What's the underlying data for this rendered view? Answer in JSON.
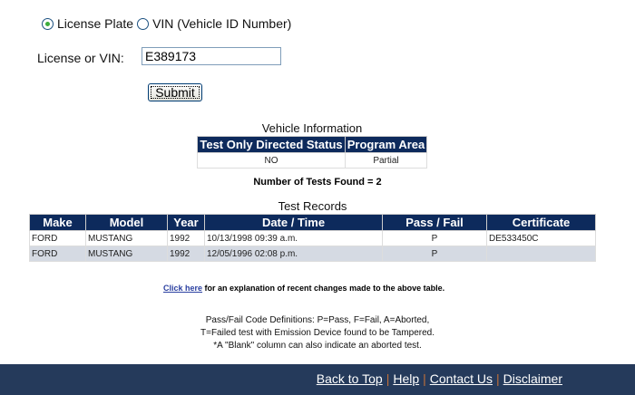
{
  "search": {
    "option_plate": "License Plate",
    "option_vin": "VIN (Vehicle ID Number)",
    "selected": "License Plate",
    "field_label": "License or VIN:",
    "field_value": "E389173",
    "submit_label": "Submit"
  },
  "vehicle_info": {
    "title": "Vehicle Information",
    "headers": [
      "Test Only Directed Status",
      "Program Area"
    ],
    "row": [
      "NO",
      "Partial"
    ]
  },
  "tests_found": "Number of Tests Found = 2",
  "test_records": {
    "title": "Test Records",
    "headers": [
      "Make",
      "Model",
      "Year",
      "Date / Time",
      "Pass / Fail",
      "Certificate"
    ],
    "rows": [
      [
        "FORD",
        "MUSTANG",
        "1992",
        "10/13/1998 09:39 a.m.",
        "P",
        "DE533450C"
      ],
      [
        "FORD",
        "MUSTANG",
        "1992",
        "12/05/1996 02:08 p.m.",
        "P",
        ""
      ]
    ]
  },
  "explanation": {
    "link": "Click here",
    "text": " for an explanation of recent changes made to the above table."
  },
  "definitions": [
    "Pass/Fail Code Definitions: P=Pass, F=Fail, A=Aborted,",
    "T=Failed test with Emission Device found to be Tampered.",
    "*A \"Blank\" column can also indicate an aborted test."
  ],
  "footer": {
    "links": [
      "Back to Top",
      "Help",
      "Contact Us",
      "Disclaimer"
    ]
  },
  "colors": {
    "header_bg": "#0d2a5c",
    "footer_bg": "#253a5b",
    "alt_row": "#d5dae3"
  }
}
